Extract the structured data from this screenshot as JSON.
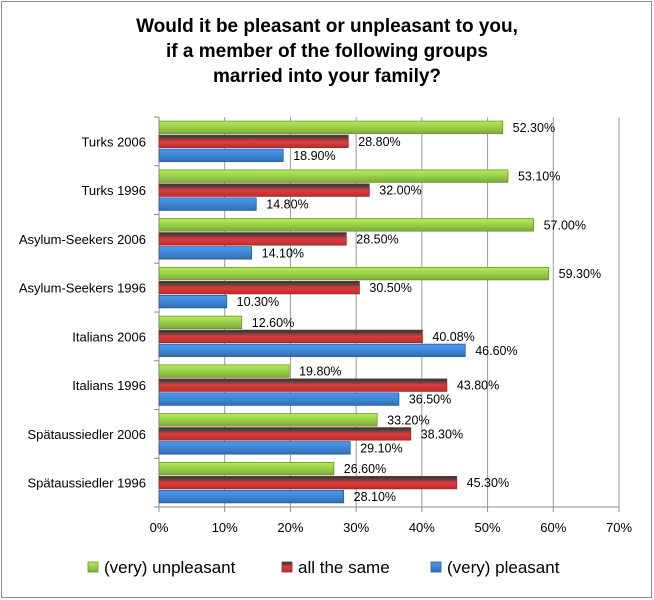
{
  "chart_data": {
    "type": "bar",
    "orientation": "horizontal",
    "title": "Would it be pleasant or unpleasant to you,\nif a member of the following groups\nmarried into your family?",
    "xlabel": "",
    "ylabel": "",
    "categories": [
      "Turks 2006",
      "Turks 1996",
      "Asylum-Seekers 2006",
      "Asylum-Seekers 1996",
      "Italians 2006",
      "Italians 1996",
      "Spätaussiedler 2006",
      "Spätaussiedler 1996"
    ],
    "series": [
      {
        "name": "(very) unpleasant",
        "color": "#9bcf4a",
        "values": [
          52.3,
          53.1,
          57.0,
          59.3,
          12.6,
          19.8,
          33.2,
          26.6
        ],
        "labels": [
          "52.30%",
          "53.10%",
          "57.00%",
          "59.30%",
          "12.60%",
          "19.80%",
          "33.20%",
          "26.60%"
        ]
      },
      {
        "name": "all the same",
        "color": "#e03a3a",
        "values": [
          28.8,
          32.0,
          28.5,
          30.5,
          40.08,
          43.8,
          38.3,
          45.3
        ],
        "labels": [
          "28.80%",
          "32.00%",
          "28.50%",
          "30.50%",
          "40.08%",
          "43.80%",
          "38.30%",
          "45.30%"
        ]
      },
      {
        "name": "(very) pleasant",
        "color": "#3f86d6",
        "values": [
          18.9,
          14.8,
          14.1,
          10.3,
          46.6,
          36.5,
          29.1,
          28.1
        ],
        "labels": [
          "18.90%",
          "14.80%",
          "14.10%",
          "10.30%",
          "46.60%",
          "36.50%",
          "29.10%",
          "28.10%"
        ]
      }
    ],
    "xlim": [
      0,
      70
    ],
    "xticks": [
      0,
      10,
      20,
      30,
      40,
      50,
      60,
      70
    ],
    "xtick_labels": [
      "0%",
      "10%",
      "20%",
      "30%",
      "40%",
      "50%",
      "60%",
      "70%"
    ],
    "grid": true,
    "legend_position": "bottom"
  }
}
